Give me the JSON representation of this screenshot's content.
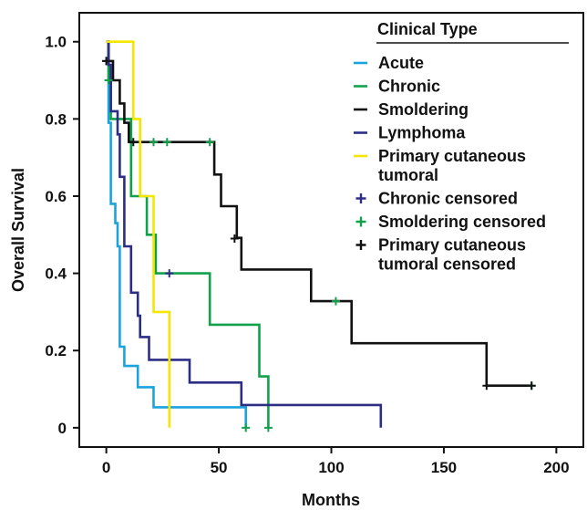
{
  "chart_data": {
    "type": "line",
    "step": true,
    "xlabel": "Months",
    "ylabel": "Overall Survival",
    "xlim": [
      -12,
      212
    ],
    "ylim": [
      -0.05,
      1.075
    ],
    "xticks": [
      0,
      50,
      100,
      150,
      200
    ],
    "xtick_labels": [
      "0",
      "50",
      "100",
      "150",
      "200"
    ],
    "yticks": [
      0,
      0.2,
      0.4,
      0.6,
      0.8,
      1.0
    ],
    "ytick_labels": [
      "0",
      "0.2",
      "0.4",
      "0.6",
      "0.8",
      "1.0"
    ],
    "grid": false,
    "legend_placement": "top-right",
    "legend_title": "Clinical Type",
    "series": [
      {
        "name": "Acute",
        "color": "#1aa3dc",
        "points": [
          [
            0,
            1.0
          ],
          [
            1,
            1.0
          ],
          [
            1,
            0.79
          ],
          [
            2,
            0.79
          ],
          [
            2,
            0.58
          ],
          [
            4,
            0.58
          ],
          [
            4,
            0.53
          ],
          [
            5,
            0.53
          ],
          [
            5,
            0.47
          ],
          [
            6,
            0.47
          ],
          [
            6,
            0.21
          ],
          [
            8,
            0.21
          ],
          [
            8,
            0.16
          ],
          [
            14,
            0.16
          ],
          [
            14,
            0.105
          ],
          [
            21,
            0.105
          ],
          [
            21,
            0.053
          ],
          [
            62,
            0.053
          ],
          [
            62,
            0.0
          ]
        ],
        "censored": []
      },
      {
        "name": "Chronic",
        "color": "#12a14b",
        "points": [
          [
            0,
            1.0
          ],
          [
            1,
            1.0
          ],
          [
            1,
            0.9
          ],
          [
            2,
            0.9
          ],
          [
            2,
            0.8
          ],
          [
            11,
            0.8
          ],
          [
            11,
            0.6
          ],
          [
            18,
            0.6
          ],
          [
            18,
            0.5
          ],
          [
            22,
            0.5
          ],
          [
            22,
            0.4
          ],
          [
            46,
            0.4
          ],
          [
            46,
            0.267
          ],
          [
            68,
            0.267
          ],
          [
            68,
            0.133
          ],
          [
            72,
            0.133
          ],
          [
            72,
            0.0
          ]
        ],
        "censored": []
      },
      {
        "name": "Smoldering",
        "color": "#111111",
        "points": [
          [
            0,
            1.0
          ],
          [
            1,
            1.0
          ],
          [
            1,
            0.95
          ],
          [
            3,
            0.95
          ],
          [
            3,
            0.9
          ],
          [
            6,
            0.9
          ],
          [
            6,
            0.84
          ],
          [
            8,
            0.84
          ],
          [
            8,
            0.79
          ],
          [
            10,
            0.79
          ],
          [
            10,
            0.74
          ],
          [
            48,
            0.74
          ],
          [
            48,
            0.656
          ],
          [
            51,
            0.656
          ],
          [
            51,
            0.574
          ],
          [
            58,
            0.574
          ],
          [
            58,
            0.492
          ],
          [
            60,
            0.492
          ],
          [
            60,
            0.41
          ],
          [
            91,
            0.41
          ],
          [
            91,
            0.328
          ],
          [
            109,
            0.328
          ],
          [
            109,
            0.219
          ],
          [
            169,
            0.219
          ],
          [
            169,
            0.109
          ],
          [
            189,
            0.109
          ]
        ],
        "censored": []
      },
      {
        "name": "Lymphoma",
        "color": "#2b2e83",
        "points": [
          [
            0,
            1.0
          ],
          [
            1,
            1.0
          ],
          [
            1,
            0.94
          ],
          [
            2,
            0.94
          ],
          [
            2,
            0.82
          ],
          [
            5,
            0.82
          ],
          [
            5,
            0.76
          ],
          [
            6,
            0.76
          ],
          [
            6,
            0.65
          ],
          [
            8,
            0.65
          ],
          [
            8,
            0.47
          ],
          [
            11,
            0.47
          ],
          [
            11,
            0.35
          ],
          [
            14,
            0.35
          ],
          [
            14,
            0.29
          ],
          [
            15,
            0.29
          ],
          [
            15,
            0.235
          ],
          [
            19,
            0.235
          ],
          [
            19,
            0.176
          ],
          [
            37,
            0.176
          ],
          [
            37,
            0.117
          ],
          [
            60,
            0.117
          ],
          [
            60,
            0.059
          ],
          [
            122,
            0.059
          ],
          [
            122,
            0.0
          ]
        ],
        "censored": []
      },
      {
        "name": "Primary cutaneous tumoral",
        "color": "#f5e600",
        "points": [
          [
            0,
            1.0
          ],
          [
            12,
            1.0
          ],
          [
            12,
            0.8
          ],
          [
            15,
            0.8
          ],
          [
            15,
            0.6
          ],
          [
            21,
            0.6
          ],
          [
            21,
            0.3
          ],
          [
            28,
            0.3
          ],
          [
            28,
            0.0
          ]
        ],
        "censored": []
      },
      {
        "name": "Chronic censored",
        "color": "#2b2e83",
        "points": [],
        "censored": [
          [
            0,
            0.95
          ],
          [
            28,
            0.4
          ]
        ]
      },
      {
        "name": "Smoldering censored",
        "color": "#12a14b",
        "points": [],
        "censored": [
          [
            1,
            0.9
          ],
          [
            21,
            0.74
          ],
          [
            27,
            0.74
          ],
          [
            46,
            0.74
          ],
          [
            102,
            0.328
          ],
          [
            189,
            0.109
          ],
          [
            62,
            0.0
          ],
          [
            72,
            0.0
          ]
        ]
      },
      {
        "name": "Primary cutaneous tumoral censored",
        "color": "#111111",
        "points": [],
        "censored": [
          [
            0,
            0.95
          ],
          [
            12,
            0.74
          ],
          [
            57,
            0.49
          ],
          [
            169,
            0.109
          ],
          [
            189,
            0.109
          ]
        ]
      }
    ]
  }
}
